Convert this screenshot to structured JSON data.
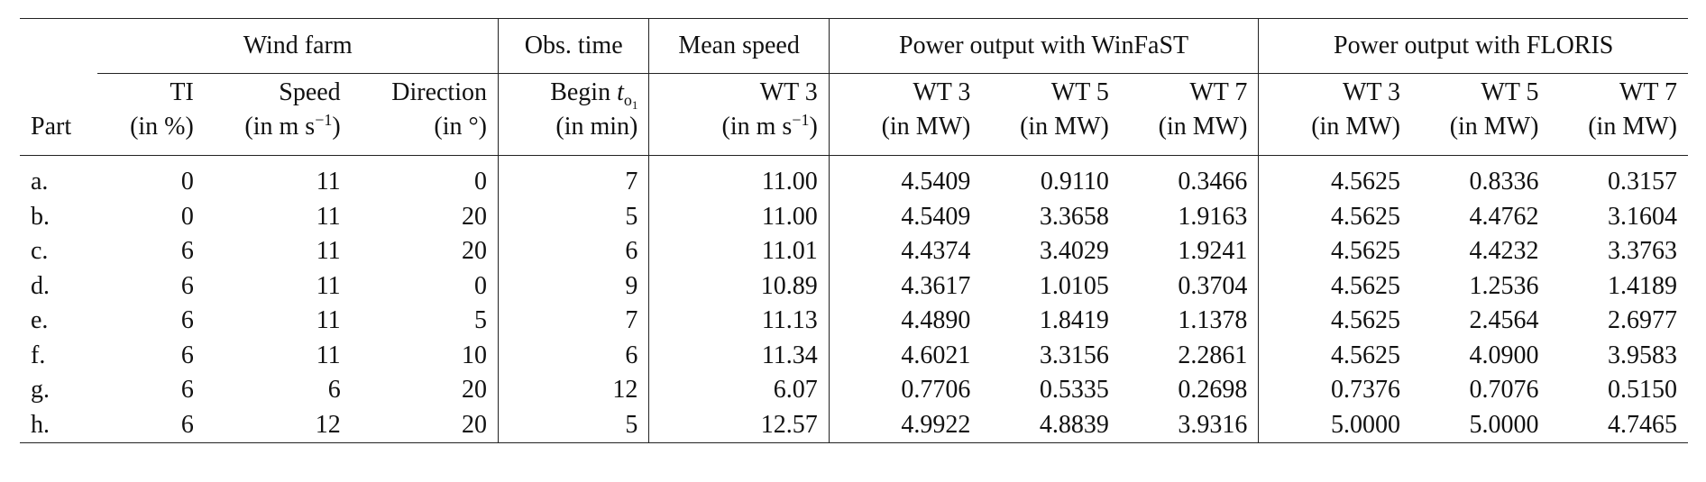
{
  "table": {
    "group_headers": {
      "wind_farm": "Wind farm",
      "obs_time": "Obs. time",
      "mean_speed": "Mean speed",
      "power_winfast": "Power output with WinFaST",
      "power_floris": "Power output with FLORIS"
    },
    "col_headers": {
      "part": "Part",
      "ti_line1": "TI",
      "ti_line2": "(in %)",
      "speed_line1": "Speed",
      "speed_line2_pre": "(in m s",
      "speed_line2_sup": "−1",
      "speed_line2_post": ")",
      "direction_line1": "Direction",
      "direction_line2": "(in °)",
      "begin_pre": "Begin ",
      "begin_t": "t",
      "begin_sub": "o",
      "begin_sub2": "1",
      "begin_line2": "(in min)",
      "wt3_ms_line1": "WT 3",
      "wt3_ms_line2_pre": "(in m s",
      "wt3_ms_line2_sup": "−1",
      "wt3_ms_line2_post": ")",
      "wf_wt3": "WT 3",
      "wf_wt5": "WT 5",
      "wf_wt7": "WT 7",
      "fl_wt3": "WT 3",
      "fl_wt5": "WT 5",
      "fl_wt7": "WT 7",
      "mw": "(in MW)"
    },
    "rows": [
      {
        "part": "a.",
        "ti": "0",
        "speed": "11",
        "direction": "0",
        "begin": "7",
        "mean": "11.00",
        "wf3": "4.5409",
        "wf5": "0.9110",
        "wf7": "0.3466",
        "fl3": "4.5625",
        "fl5": "0.8336",
        "fl7": "0.3157"
      },
      {
        "part": "b.",
        "ti": "0",
        "speed": "11",
        "direction": "20",
        "begin": "5",
        "mean": "11.00",
        "wf3": "4.5409",
        "wf5": "3.3658",
        "wf7": "1.9163",
        "fl3": "4.5625",
        "fl5": "4.4762",
        "fl7": "3.1604"
      },
      {
        "part": "c.",
        "ti": "6",
        "speed": "11",
        "direction": "20",
        "begin": "6",
        "mean": "11.01",
        "wf3": "4.4374",
        "wf5": "3.4029",
        "wf7": "1.9241",
        "fl3": "4.5625",
        "fl5": "4.4232",
        "fl7": "3.3763"
      },
      {
        "part": "d.",
        "ti": "6",
        "speed": "11",
        "direction": "0",
        "begin": "9",
        "mean": "10.89",
        "wf3": "4.3617",
        "wf5": "1.0105",
        "wf7": "0.3704",
        "fl3": "4.5625",
        "fl5": "1.2536",
        "fl7": "1.4189"
      },
      {
        "part": "e.",
        "ti": "6",
        "speed": "11",
        "direction": "5",
        "begin": "7",
        "mean": "11.13",
        "wf3": "4.4890",
        "wf5": "1.8419",
        "wf7": "1.1378",
        "fl3": "4.5625",
        "fl5": "2.4564",
        "fl7": "2.6977"
      },
      {
        "part": "f.",
        "ti": "6",
        "speed": "11",
        "direction": "10",
        "begin": "6",
        "mean": "11.34",
        "wf3": "4.6021",
        "wf5": "3.3156",
        "wf7": "2.2861",
        "fl3": "4.5625",
        "fl5": "4.0900",
        "fl7": "3.9583"
      },
      {
        "part": "g.",
        "ti": "6",
        "speed": "6",
        "direction": "20",
        "begin": "12",
        "mean": "6.07",
        "wf3": "0.7706",
        "wf5": "0.5335",
        "wf7": "0.2698",
        "fl3": "0.7376",
        "fl5": "0.7076",
        "fl7": "0.5150"
      },
      {
        "part": "h.",
        "ti": "6",
        "speed": "12",
        "direction": "20",
        "begin": "5",
        "mean": "12.57",
        "wf3": "4.9922",
        "wf5": "4.8839",
        "wf7": "3.9316",
        "fl3": "5.0000",
        "fl5": "5.0000",
        "fl7": "4.7465"
      }
    ]
  }
}
